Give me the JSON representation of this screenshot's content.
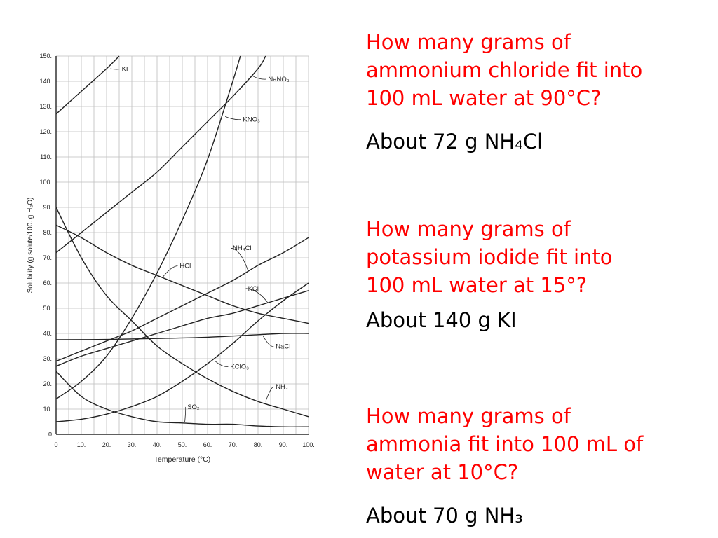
{
  "colors": {
    "question": "#ff0000",
    "answer": "#000000",
    "grid": "#bdbdbd",
    "curve": "#222222"
  },
  "chart_data": {
    "type": "line",
    "xlabel": "Temperature (°C)",
    "ylabel": "Solubility (g solute/100. g H₂O)",
    "xlim": [
      0,
      100
    ],
    "ylim": [
      0,
      150
    ],
    "x_ticks": [
      "0",
      "10.",
      "20.",
      "30.",
      "40.",
      "50.",
      "60.",
      "70.",
      "80.",
      "90.",
      "100."
    ],
    "y_ticks": [
      "0",
      "10.",
      "20.",
      "30.",
      "40.",
      "50.",
      "60.",
      "70.",
      "80.",
      "90.",
      "100.",
      "110.",
      "120.",
      "130.",
      "140.",
      "150."
    ],
    "grid": true,
    "series": [
      {
        "name": "KI",
        "x": [
          0,
          10,
          20,
          25
        ],
        "y": [
          127,
          136,
          145,
          150
        ]
      },
      {
        "name": "NaNO₃",
        "x": [
          0,
          10,
          20,
          30,
          40,
          50,
          60,
          70,
          80,
          83
        ],
        "y": [
          72,
          80,
          88,
          96,
          104,
          114,
          124,
          134,
          145,
          150
        ]
      },
      {
        "name": "KNO₃",
        "x": [
          0,
          10,
          20,
          30,
          40,
          50,
          60,
          70,
          73
        ],
        "y": [
          14,
          21,
          31,
          46,
          64,
          85,
          109,
          140,
          150
        ]
      },
      {
        "name": "NH₄Cl",
        "x": [
          0,
          10,
          20,
          30,
          40,
          50,
          60,
          70,
          80,
          90,
          100
        ],
        "y": [
          29,
          33,
          37,
          41,
          46,
          51,
          56,
          61,
          67,
          72,
          78
        ]
      },
      {
        "name": "HCl",
        "x": [
          0,
          10,
          20,
          30,
          40,
          50,
          60,
          70,
          80,
          90,
          100
        ],
        "y": [
          83,
          78,
          72,
          67,
          63,
          59,
          55,
          51,
          48,
          46,
          44
        ]
      },
      {
        "name": "KCl",
        "x": [
          0,
          10,
          20,
          30,
          40,
          50,
          60,
          70,
          80,
          90,
          100
        ],
        "y": [
          27,
          31,
          34,
          37,
          40,
          43,
          46,
          48,
          51,
          54,
          57
        ]
      },
      {
        "name": "NaCl",
        "x": [
          0,
          20,
          40,
          60,
          80,
          90,
          100
        ],
        "y": [
          37.5,
          37.6,
          38,
          38.5,
          39.5,
          40,
          40
        ]
      },
      {
        "name": "KClO₃",
        "x": [
          0,
          10,
          20,
          30,
          40,
          50,
          60,
          70,
          80,
          90,
          100
        ],
        "y": [
          5,
          6,
          8,
          11,
          15,
          21,
          28,
          36,
          45,
          53,
          60
        ]
      },
      {
        "name": "NH₃",
        "x": [
          0,
          10,
          20,
          30,
          40,
          50,
          60,
          70,
          80,
          90,
          100
        ],
        "y": [
          90,
          70,
          55,
          45,
          35,
          28,
          22,
          17,
          13,
          10,
          7
        ]
      },
      {
        "name": "SO₂",
        "x": [
          0,
          10,
          20,
          30,
          40,
          50,
          60,
          70,
          80,
          90,
          100
        ],
        "y": [
          25,
          15,
          10,
          7,
          5,
          4.5,
          4,
          4,
          3.3,
          3,
          3
        ]
      }
    ]
  },
  "questions": [
    {
      "question": "How many grams of\nammonium chloride fit into\n100 mL water at 90°C?",
      "answer": "About 72 g NH₄Cl"
    },
    {
      "question": "How many grams of\npotassium iodide fit into\n100 mL water at 15°?",
      "answer": "About 140 g KI"
    },
    {
      "question": "How many grams of\nammonia fit into 100 mL of\nwater at 10°C?",
      "answer": "About 70 g NH₃"
    }
  ]
}
